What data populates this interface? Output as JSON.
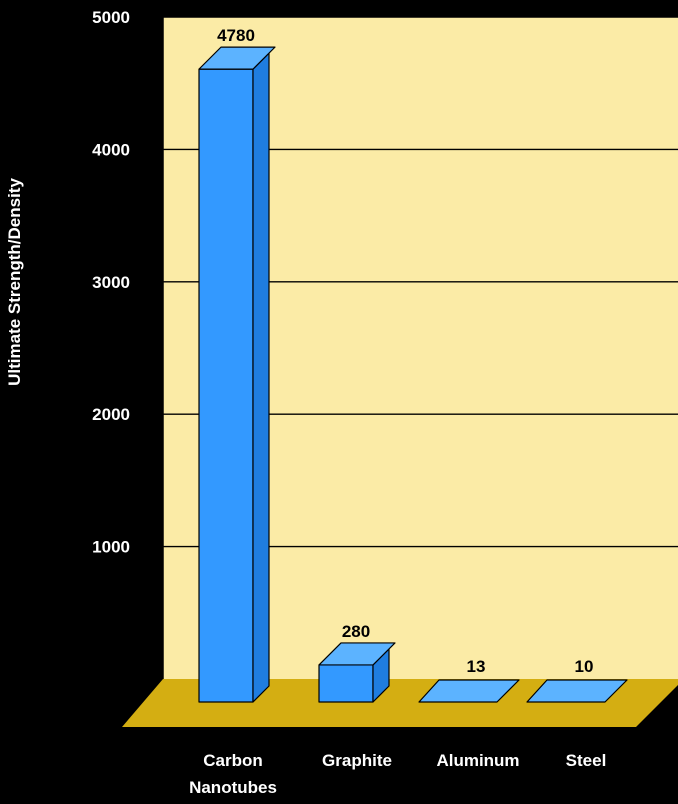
{
  "chart_data": {
    "type": "bar",
    "title": "",
    "xlabel": "",
    "ylabel": "Ultimate Strength/Density",
    "categories": [
      [
        "Carbon",
        "Nanotubes"
      ],
      [
        "Graphite"
      ],
      [
        "Aluminum"
      ],
      [
        "Steel"
      ]
    ],
    "values": [
      4780,
      280,
      13,
      10
    ],
    "data_labels": [
      "4780",
      "280",
      "13",
      "10"
    ],
    "yticks": [
      "1000",
      "2000",
      "3000",
      "4000",
      "5000"
    ],
    "ylim": [
      0,
      5000
    ],
    "grid": true,
    "legend": "none",
    "style": "3d",
    "colors": {
      "background": "#000000",
      "plot_wall": "#FBEBA6",
      "floor": "#D4AE12",
      "bar_front": "#3399FF",
      "bar_top": "#5CB3FF",
      "bar_side": "#1F7DE0",
      "text": "#FFFFFF",
      "data_label": "#000000",
      "gridline": "#000000"
    }
  }
}
